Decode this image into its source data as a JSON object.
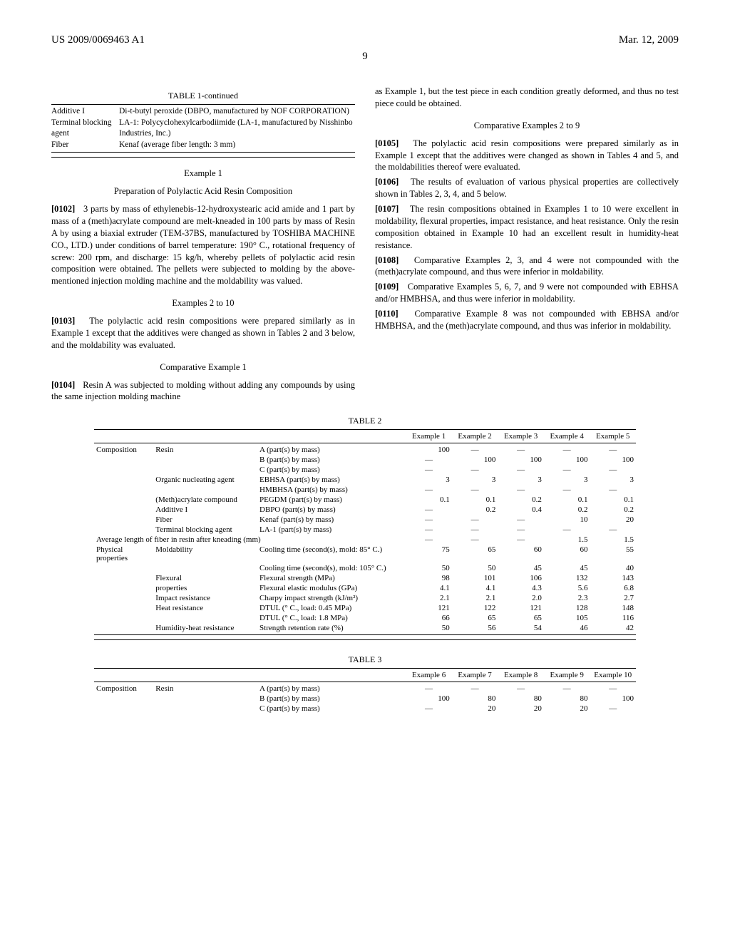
{
  "header": {
    "pub_no": "US 2009/0069463 A1",
    "date": "Mar. 12, 2009",
    "page": "9"
  },
  "table1": {
    "caption": "TABLE 1-continued",
    "rows": [
      {
        "l": "Additive I",
        "r": "Di-t-butyl peroxide (DBPO, manufactured by NOF CORPORATION)"
      },
      {
        "l": "Terminal blocking agent",
        "r": "LA-1: Polycyclohexylcarbodiimide (LA-1, manufactured by Nisshinbo Industries, Inc.)"
      },
      {
        "l": "Fiber",
        "r": "Kenaf (average fiber length: 3 mm)"
      }
    ]
  },
  "left": {
    "ex1_title": "Example 1",
    "ex1_sub": "Preparation of Polylactic Acid Resin Composition",
    "p0102": "3 parts by mass of ethylenebis-12-hydroxystearic acid amide and 1 part by mass of a (meth)acrylate compound are melt-kneaded in 100 parts by mass of Resin A by using a biaxial extruder (TEM-37BS, manufactured by TOSHIBA MACHINE CO., LTD.) under conditions of barrel temperature: 190° C., rotational frequency of screw: 200 rpm, and discharge: 15 kg/h, whereby pellets of polylactic acid resin composition were obtained. The pellets were subjected to molding by the above-mentioned injection molding machine and the moldability was valued.",
    "ex2_title": "Examples 2 to 10",
    "p0103": "The polylactic acid resin compositions were prepared similarly as in Example 1 except that the additives were changed as shown in Tables 2 and 3 below, and the moldability was evaluated.",
    "ce1_title": "Comparative Example 1",
    "p0104": "Resin A was subjected to molding without adding any compounds by using the same injection molding machine"
  },
  "right": {
    "cont": "as Example 1, but the test piece in each condition greatly deformed, and thus no test piece could be obtained.",
    "ce2_title": "Comparative Examples 2 to 9",
    "p0105": "The polylactic acid resin compositions were prepared similarly as in Example 1 except that the additives were changed as shown in Tables 4 and 5, and the moldabilities thereof were evaluated.",
    "p0106": "The results of evaluation of various physical properties are collectively shown in Tables 2, 3, 4, and 5 below.",
    "p0107": "The resin compositions obtained in Examples 1 to 10 were excellent in moldability, flexural properties, impact resistance, and heat resistance. Only the resin composition obtained in Example 10 had an excellent result in humidity-heat resistance.",
    "p0108": "Comparative Examples 2, 3, and 4 were not compounded with the (meth)acrylate compound, and thus were inferior in moldability.",
    "p0109": "Comparative Examples 5, 6, 7, and 9 were not compounded with EBHSA and/or HMBHSA, and thus were inferior in moldability.",
    "p0110": "Comparative Example 8 was not compounded with EBHSA and/or HMBHSA, and the (meth)acrylate compound, and thus was inferior in moldability."
  },
  "table2": {
    "caption": "TABLE 2",
    "headers": [
      "Example 1",
      "Example 2",
      "Example 3",
      "Example 4",
      "Example 5"
    ],
    "dash": "—",
    "rows": [
      {
        "g": "Composition",
        "c1": "Resin",
        "c2": "A (part(s) by mass)",
        "v": [
          "100",
          "—",
          "—",
          "—",
          "—"
        ]
      },
      {
        "g": "",
        "c1": "",
        "c2": "B (part(s) by mass)",
        "v": [
          "—",
          "100",
          "100",
          "100",
          "100"
        ]
      },
      {
        "g": "",
        "c1": "",
        "c2": "C (part(s) by mass)",
        "v": [
          "—",
          "—",
          "—",
          "—",
          "—"
        ]
      },
      {
        "g": "",
        "c1": "Organic nucleating agent",
        "c2": "EBHSA (part(s) by mass)",
        "v": [
          "3",
          "3",
          "3",
          "3",
          "3"
        ]
      },
      {
        "g": "",
        "c1": "",
        "c2": "HMBHSA (part(s) by mass)",
        "v": [
          "—",
          "—",
          "—",
          "—",
          "—"
        ]
      },
      {
        "g": "",
        "c1": "(Meth)acrylate compound",
        "c2": "PEGDM (part(s) by mass)",
        "v": [
          "0.1",
          "0.1",
          "0.2",
          "0.1",
          "0.1"
        ]
      },
      {
        "g": "",
        "c1": "Additive I",
        "c2": "DBPO (part(s) by mass)",
        "v": [
          "—",
          "0.2",
          "0.4",
          "0.2",
          "0.2"
        ]
      },
      {
        "g": "",
        "c1": "Fiber",
        "c2": "Kenaf (part(s) by mass)",
        "v": [
          "—",
          "—",
          "—",
          "10",
          "20"
        ]
      },
      {
        "g": "",
        "c1": "Terminal blocking agent",
        "c2": "LA-1 (part(s) by mass)",
        "v": [
          "—",
          "—",
          "—",
          "—",
          "—"
        ]
      },
      {
        "span": "Average length of fiber in resin after kneading (mm)",
        "v": [
          "—",
          "—",
          "—",
          "1.5",
          "1.5"
        ]
      },
      {
        "g": "Physical properties",
        "c1": "Moldability",
        "c2": "Cooling time (second(s), mold: 85° C.)",
        "v": [
          "75",
          "65",
          "60",
          "60",
          "55"
        ]
      },
      {
        "g": "",
        "c1": "",
        "c2": "Cooling time (second(s), mold: 105° C.)",
        "v": [
          "50",
          "50",
          "45",
          "45",
          "40"
        ]
      },
      {
        "g": "",
        "c1": "Flexural",
        "c2": "Flexural strength (MPa)",
        "v": [
          "98",
          "101",
          "106",
          "132",
          "143"
        ]
      },
      {
        "g": "",
        "c1": "properties",
        "c2": "Flexural elastic modulus (GPa)",
        "v": [
          "4.1",
          "4.1",
          "4.3",
          "5.6",
          "6.8"
        ]
      },
      {
        "g": "",
        "c1": "Impact resistance",
        "c2": "Charpy impact strength (kJ/m²)",
        "v": [
          "2.1",
          "2.1",
          "2.0",
          "2.3",
          "2.7"
        ]
      },
      {
        "g": "",
        "c1": "Heat resistance",
        "c2": "DTUL (° C., load: 0.45 MPa)",
        "v": [
          "121",
          "122",
          "121",
          "128",
          "148"
        ]
      },
      {
        "g": "",
        "c1": "",
        "c2": "DTUL (° C., load: 1.8 MPa)",
        "v": [
          "66",
          "65",
          "65",
          "105",
          "116"
        ]
      },
      {
        "g": "",
        "c1": "Humidity-heat resistance",
        "c2": "Strength retention rate (%)",
        "v": [
          "50",
          "56",
          "54",
          "46",
          "42"
        ]
      }
    ]
  },
  "table3": {
    "caption": "TABLE 3",
    "headers": [
      "Example 6",
      "Example 7",
      "Example 8",
      "Example 9",
      "Example 10"
    ],
    "rows": [
      {
        "g": "Composition",
        "c1": "Resin",
        "c2": "A (part(s) by mass)",
        "v": [
          "—",
          "—",
          "—",
          "—",
          "—"
        ]
      },
      {
        "g": "",
        "c1": "",
        "c2": "B (part(s) by mass)",
        "v": [
          "100",
          "80",
          "80",
          "80",
          "100"
        ]
      },
      {
        "g": "",
        "c1": "",
        "c2": "C (part(s) by mass)",
        "v": [
          "—",
          "20",
          "20",
          "20",
          "—"
        ]
      }
    ]
  }
}
